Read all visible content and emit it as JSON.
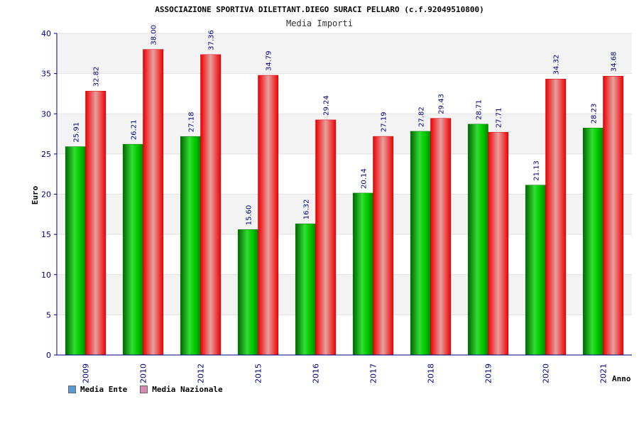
{
  "chart_data": {
    "type": "bar",
    "title": "ASSOCIAZIONE SPORTIVA DILETTANT.DIEGO SURACI PELLARO (c.f.92049510800)",
    "subtitle": "Media Importi",
    "xlabel": "Anno",
    "ylabel": "Euro",
    "ylim": [
      0,
      40
    ],
    "yticks": [
      0,
      5,
      10,
      15,
      20,
      25,
      30,
      35,
      40
    ],
    "grid": true,
    "legend_position": "bottom-left",
    "categories": [
      "2009",
      "2010",
      "2012",
      "2015",
      "2016",
      "2017",
      "2018",
      "2019",
      "2020",
      "2021"
    ],
    "series": [
      {
        "name": "Media Ente",
        "color": "#00aa00",
        "legend_color": "#5b9bd5",
        "values": [
          25.91,
          26.21,
          27.18,
          15.6,
          16.32,
          20.14,
          27.82,
          28.71,
          21.13,
          28.23
        ],
        "labels": [
          "25.91",
          "26.21",
          "27.18",
          "15.60",
          "16.32",
          "20.14",
          "27.82",
          "28.71",
          "21.13",
          "28.23"
        ]
      },
      {
        "name": "Media Nazionale",
        "color": "#ee0000",
        "legend_color": "#d98cb3",
        "values": [
          32.82,
          38.0,
          37.36,
          34.79,
          29.24,
          27.19,
          29.43,
          27.71,
          34.32,
          34.68
        ],
        "labels": [
          "32.82",
          "38.00",
          "37.36",
          "34.79",
          "29.24",
          "27.19",
          "29.43",
          "27.71",
          "34.32",
          "34.68"
        ]
      }
    ]
  }
}
